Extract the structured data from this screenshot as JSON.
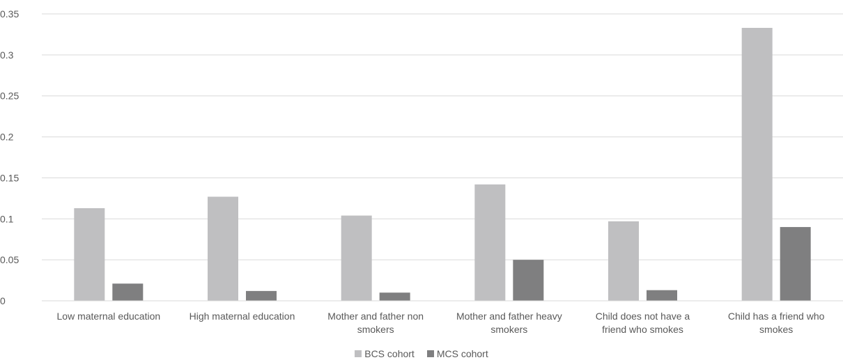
{
  "chart_data": {
    "type": "bar",
    "categories": [
      [
        "Low maternal education"
      ],
      [
        "High maternal education"
      ],
      [
        "Mother and father non",
        "smokers"
      ],
      [
        "Mother and father heavy",
        "smokers"
      ],
      [
        "Child does not have a",
        "friend who smokes"
      ],
      [
        "Child has a friend who",
        "smokes"
      ]
    ],
    "series": [
      {
        "name": "BCS cohort",
        "color": "#bfbfc1",
        "values": [
          0.113,
          0.127,
          0.104,
          0.142,
          0.097,
          0.333
        ]
      },
      {
        "name": "MCS cohort",
        "color": "#7f7f80",
        "values": [
          0.021,
          0.012,
          0.01,
          0.05,
          0.013,
          0.09
        ]
      }
    ],
    "ylim": [
      0,
      0.35
    ],
    "yticks": [
      "0",
      "0.05",
      "0.1",
      "0.15",
      "0.2",
      "0.25",
      "0.3",
      "0.35"
    ],
    "grid": true,
    "legend_position": "bottom",
    "title": "",
    "xlabel": "",
    "ylabel": ""
  }
}
